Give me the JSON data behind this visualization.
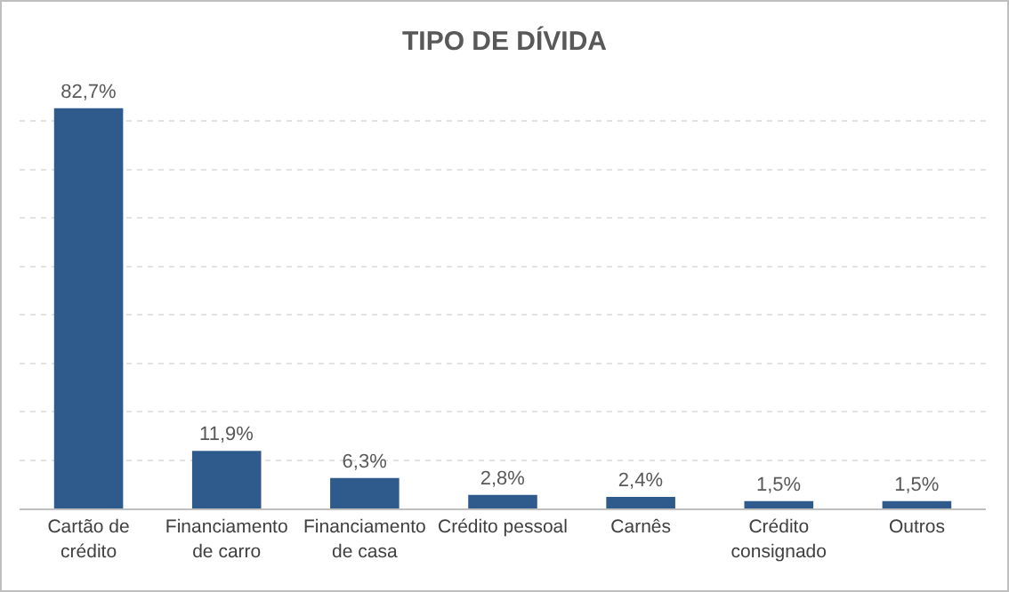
{
  "chart_data": {
    "type": "bar",
    "title": "TIPO DE DÍVIDA",
    "categories": [
      "Cartão de crédito",
      "Financiamento de carro",
      "Financiamento de casa",
      "Crédito pessoal",
      "Carnês",
      "Crédito consignado",
      "Outros"
    ],
    "values": [
      82.7,
      11.9,
      6.3,
      2.8,
      2.4,
      1.5,
      1.5
    ],
    "value_labels": [
      "82,7%",
      "11,9%",
      "6,3%",
      "2,8%",
      "2,4%",
      "1,5%",
      "1,5%"
    ],
    "color": "#2e5b8c",
    "yticks": [
      {
        "value": 0,
        "label": null
      },
      {
        "value": 10,
        "label": null
      },
      {
        "value": 20,
        "label": null
      },
      {
        "value": 30,
        "label": null
      },
      {
        "value": 40,
        "label": null
      },
      {
        "value": 50,
        "label": null
      },
      {
        "value": 60,
        "label": null
      },
      {
        "value": 70,
        "label": null
      },
      {
        "value": 80,
        "label": null
      }
    ],
    "grid": "y",
    "tick_labels": "x"
  }
}
